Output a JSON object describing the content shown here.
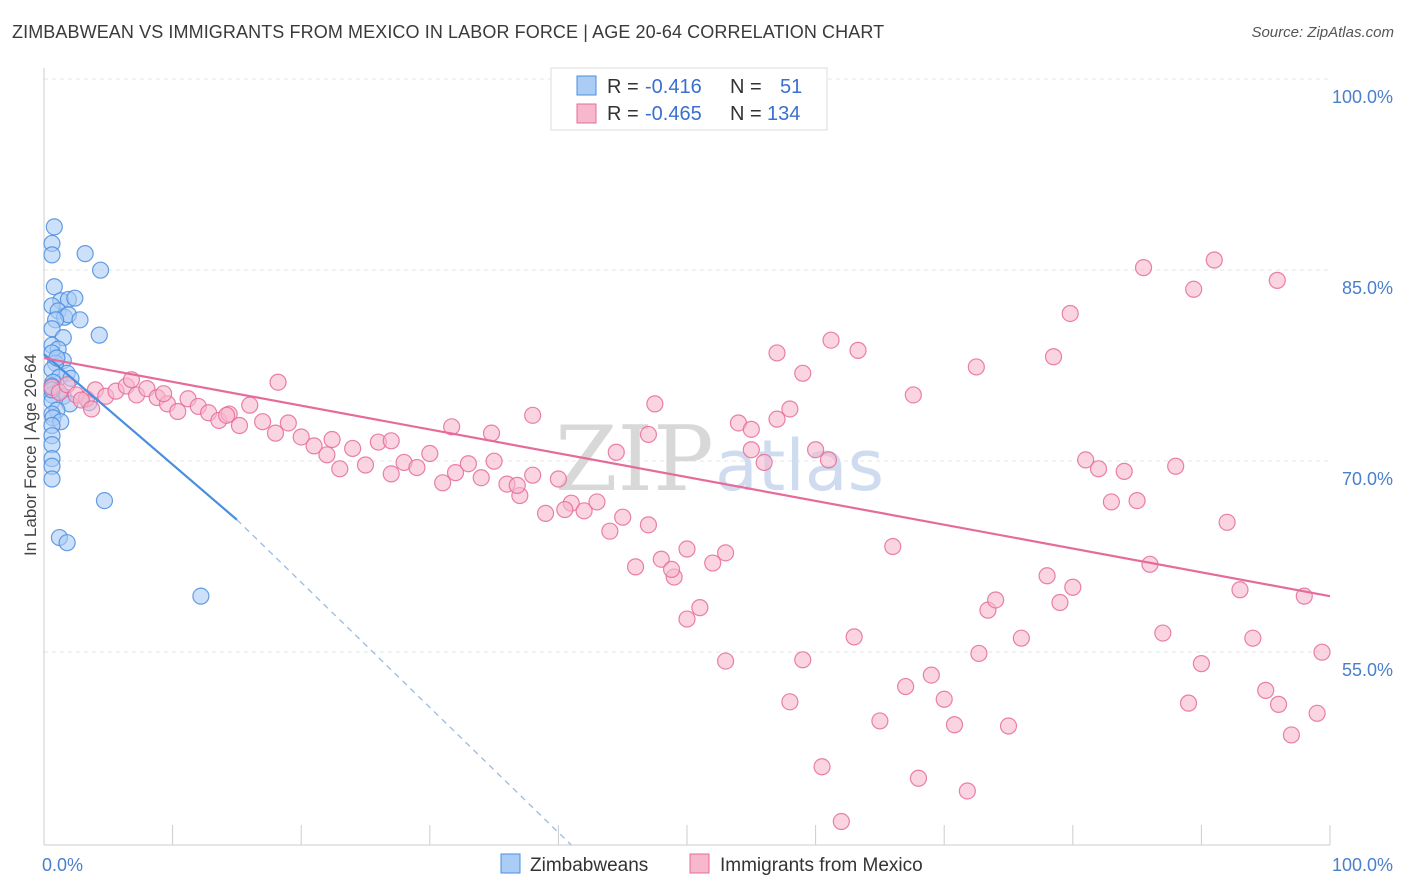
{
  "title": "ZIMBABWEAN VS IMMIGRANTS FROM MEXICO IN LABOR FORCE | AGE 20-64 CORRELATION CHART",
  "source": "Source: ZipAtlas.com",
  "watermark": {
    "zip": "ZIP",
    "atlas": "atlas"
  },
  "colors": {
    "blue": "#4a8ee0",
    "blue_fill": "#aaccf5",
    "pink": "#e66b9a",
    "pink_fill": "#f7b8cd",
    "tick_text": "#4a7fcc"
  },
  "legend": {
    "rows": [
      {
        "r_label": "R =",
        "r_value": "-0.416",
        "n_label": "N =",
        "n_value": "51"
      },
      {
        "r_label": "R =",
        "r_value": "-0.465",
        "n_label": "N =",
        "n_value": "134"
      }
    ]
  },
  "bottom_legend": [
    "Zimbabweans",
    "Immigrants from Mexico"
  ],
  "chart_data": {
    "type": "scatter",
    "ylabel": "In Labor Force | Age 20-64",
    "xlim": [
      0,
      100
    ],
    "ylim": [
      38,
      102
    ],
    "x_tick_labels": [
      {
        "value": 0,
        "label": "0.0%"
      },
      {
        "value": 100,
        "label": "100.0%"
      }
    ],
    "y_ticks": [
      {
        "value": 100,
        "label": "100.0%"
      },
      {
        "value": 85,
        "label": "85.0%"
      },
      {
        "value": 70,
        "label": "70.0%"
      },
      {
        "value": 55,
        "label": "55.0%"
      }
    ],
    "grid": true,
    "series": [
      {
        "name": "Zimbabweans",
        "points": [
          [
            0.3,
            88.5
          ],
          [
            0.8,
            89.8
          ],
          [
            0.6,
            87.6
          ],
          [
            3.2,
            87.7
          ],
          [
            0.8,
            85.1
          ],
          [
            1.3,
            84.0
          ],
          [
            1.9,
            84.1
          ],
          [
            2.4,
            84.2
          ],
          [
            4.4,
            86.4
          ],
          [
            0.4,
            83.6
          ],
          [
            1.1,
            83.2
          ],
          [
            1.6,
            82.7
          ],
          [
            1.9,
            82.9
          ],
          [
            2.8,
            82.5
          ],
          [
            0.9,
            82.5
          ],
          [
            0.5,
            81.8
          ],
          [
            4.3,
            81.3
          ],
          [
            1.5,
            81.1
          ],
          [
            0.6,
            80.5
          ],
          [
            1.1,
            80.2
          ],
          [
            0.4,
            79.9
          ],
          [
            1.5,
            79.3
          ],
          [
            0.9,
            79.1
          ],
          [
            0.3,
            78.6
          ],
          [
            1.8,
            78.3
          ],
          [
            1.2,
            78.0
          ],
          [
            0.7,
            77.6
          ],
          [
            2.1,
            77.9
          ],
          [
            0.4,
            77.3
          ],
          [
            1.1,
            76.9
          ],
          [
            0.5,
            76.6
          ],
          [
            1.5,
            76.5
          ],
          [
            0.6,
            76.1
          ],
          [
            3.5,
            76.0
          ],
          [
            2.0,
            75.9
          ],
          [
            1.0,
            75.4
          ],
          [
            0.3,
            75.1
          ],
          [
            0.7,
            74.8
          ],
          [
            1.3,
            74.5
          ],
          [
            0.5,
            74.2
          ],
          [
            0.6,
            73.4
          ],
          [
            0.5,
            72.7
          ],
          [
            0.6,
            71.6
          ],
          [
            0.5,
            71.0
          ],
          [
            0.6,
            70.0
          ],
          [
            4.7,
            68.3
          ],
          [
            1.2,
            65.4
          ],
          [
            1.8,
            65.0
          ],
          [
            12.2,
            60.8
          ],
          [
            0.3,
            77.0
          ],
          [
            1.0,
            79.5
          ]
        ],
        "trend": {
          "x": [
            0.0,
            15.0
          ],
          "y": [
            79.8,
            66.8
          ]
        },
        "trend_extension": {
          "x": [
            15.0,
            41.0
          ],
          "y": [
            66.8,
            38.0
          ]
        }
      },
      {
        "name": "Immigrants from Mexico",
        "points": [
          [
            0.5,
            77.2
          ],
          [
            1.2,
            76.8
          ],
          [
            1.8,
            77.4
          ],
          [
            2.5,
            76.6
          ],
          [
            3.3,
            76.3
          ],
          [
            4.0,
            77.0
          ],
          [
            4.8,
            76.5
          ],
          [
            5.6,
            76.9
          ],
          [
            6.4,
            77.3
          ],
          [
            7.2,
            76.6
          ],
          [
            8.0,
            77.1
          ],
          [
            8.8,
            76.4
          ],
          [
            9.6,
            75.9
          ],
          [
            10.4,
            75.3
          ],
          [
            11.2,
            76.3
          ],
          [
            12.0,
            75.7
          ],
          [
            12.8,
            75.2
          ],
          [
            13.6,
            74.6
          ],
          [
            14.4,
            75.1
          ],
          [
            15.2,
            74.2
          ],
          [
            16.0,
            75.8
          ],
          [
            17.0,
            74.5
          ],
          [
            18.0,
            73.6
          ],
          [
            19.0,
            74.4
          ],
          [
            20.0,
            73.3
          ],
          [
            21.0,
            72.6
          ],
          [
            22.0,
            71.9
          ],
          [
            23.0,
            70.8
          ],
          [
            24.0,
            72.4
          ],
          [
            25.0,
            71.1
          ],
          [
            26.0,
            72.9
          ],
          [
            27.0,
            70.4
          ],
          [
            28.0,
            71.3
          ],
          [
            29.0,
            70.9
          ],
          [
            30.0,
            72.0
          ],
          [
            31.0,
            69.7
          ],
          [
            32.0,
            70.5
          ],
          [
            33.0,
            71.2
          ],
          [
            34.0,
            70.1
          ],
          [
            35.0,
            71.4
          ],
          [
            36.0,
            69.6
          ],
          [
            37.0,
            68.7
          ],
          [
            38.0,
            70.3
          ],
          [
            39.0,
            67.3
          ],
          [
            40.0,
            70.0
          ],
          [
            41.0,
            68.1
          ],
          [
            42.0,
            67.5
          ],
          [
            43.0,
            68.2
          ],
          [
            44.0,
            65.9
          ],
          [
            45.0,
            67.0
          ],
          [
            46.0,
            63.1
          ],
          [
            47.0,
            66.4
          ],
          [
            48.0,
            63.7
          ],
          [
            49.0,
            62.3
          ],
          [
            50.0,
            64.5
          ],
          [
            51.0,
            59.9
          ],
          [
            52.0,
            63.4
          ],
          [
            53.0,
            64.2
          ],
          [
            54.0,
            74.4
          ],
          [
            55.0,
            72.3
          ],
          [
            56.0,
            71.3
          ],
          [
            57.0,
            74.7
          ],
          [
            58.0,
            75.5
          ],
          [
            59.0,
            78.3
          ],
          [
            60.0,
            72.3
          ],
          [
            61.0,
            71.5
          ],
          [
            55.0,
            73.9
          ],
          [
            47.5,
            75.9
          ],
          [
            36.8,
            69.5
          ],
          [
            40.5,
            67.6
          ],
          [
            48.8,
            62.9
          ],
          [
            50.0,
            59.0
          ],
          [
            53.0,
            55.7
          ],
          [
            58.0,
            52.5
          ],
          [
            59.0,
            55.8
          ],
          [
            60.5,
            47.4
          ],
          [
            62.0,
            43.1
          ],
          [
            63.0,
            57.6
          ],
          [
            65.0,
            51.0
          ],
          [
            66.0,
            64.7
          ],
          [
            67.0,
            53.7
          ],
          [
            68.0,
            46.5
          ],
          [
            69.0,
            54.6
          ],
          [
            70.0,
            52.7
          ],
          [
            70.8,
            50.7
          ],
          [
            71.8,
            45.5
          ],
          [
            72.7,
            56.3
          ],
          [
            73.4,
            59.7
          ],
          [
            74.0,
            60.5
          ],
          [
            75.0,
            50.6
          ],
          [
            76.0,
            57.5
          ],
          [
            78.0,
            62.4
          ],
          [
            79.0,
            60.3
          ],
          [
            80.0,
            61.5
          ],
          [
            81.0,
            71.5
          ],
          [
            82.0,
            70.8
          ],
          [
            83.0,
            68.2
          ],
          [
            84.0,
            70.6
          ],
          [
            85.0,
            68.3
          ],
          [
            86.0,
            63.3
          ],
          [
            87.0,
            57.9
          ],
          [
            88.0,
            71.0
          ],
          [
            89.0,
            52.4
          ],
          [
            90.0,
            55.5
          ],
          [
            91.0,
            87.2
          ],
          [
            92.0,
            66.6
          ],
          [
            93.0,
            61.3
          ],
          [
            94.0,
            57.5
          ],
          [
            95.0,
            53.4
          ],
          [
            96.0,
            52.3
          ],
          [
            97.0,
            49.9
          ],
          [
            98.0,
            60.8
          ],
          [
            99.0,
            51.6
          ],
          [
            100.0,
            56.4
          ],
          [
            2.9,
            76.2
          ],
          [
            3.7,
            75.5
          ],
          [
            6.8,
            77.8
          ],
          [
            9.3,
            76.7
          ],
          [
            14.2,
            75.0
          ],
          [
            18.2,
            77.6
          ],
          [
            22.4,
            73.1
          ],
          [
            27.0,
            73.0
          ],
          [
            31.7,
            74.1
          ],
          [
            34.8,
            73.6
          ],
          [
            38.0,
            75.0
          ],
          [
            44.5,
            72.1
          ],
          [
            47.0,
            73.5
          ],
          [
            57.0,
            79.9
          ],
          [
            61.2,
            80.9
          ],
          [
            63.3,
            80.1
          ],
          [
            72.5,
            78.8
          ],
          [
            78.5,
            79.6
          ],
          [
            79.8,
            83.0
          ],
          [
            85.5,
            86.6
          ],
          [
            89.4,
            84.9
          ],
          [
            95.9,
            85.6
          ],
          [
            67.6,
            76.6
          ]
        ],
        "trend": {
          "x": [
            0.0,
            100.0
          ],
          "y": [
            79.5,
            60.8
          ]
        }
      }
    ]
  }
}
